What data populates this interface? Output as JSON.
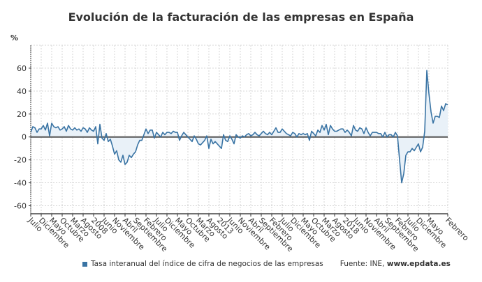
{
  "chart_data": {
    "type": "area",
    "title": "Evolución de la facturación de las empresas en España",
    "ylabel": "%",
    "xlabel": "",
    "ylim": [
      -67,
      80
    ],
    "yticks": [
      -60,
      -40,
      -20,
      0,
      20,
      40,
      60
    ],
    "grid": true,
    "legend_position": "bottom",
    "start_month": "2005-07",
    "frequency": "monthly",
    "xtick_labels": [
      "Julio",
      "Diciembre",
      "Mayo",
      "Octubre",
      "Marzo",
      "Agosto",
      "2008",
      "Junio",
      "Noviembre",
      "Abril",
      "Septiembre",
      "Febrero",
      "Julio",
      "Diciembre",
      "Mayo",
      "Octubre",
      "Marzo",
      "Agosto",
      "2013",
      "Junio",
      "Noviembre",
      "Abril",
      "Septiembre",
      "Febrero",
      "Julio",
      "Diciembre",
      "Mayo",
      "Octubre",
      "Marzo",
      "Agosto",
      "2018",
      "Junio",
      "Noviembre",
      "Abril",
      "Septiembre",
      "Febrero",
      "Julio",
      "Diciembre",
      "Mayo",
      "Febrero"
    ],
    "xtick_months": [
      0,
      5,
      10,
      15,
      20,
      25,
      30,
      35,
      40,
      45,
      50,
      55,
      60,
      65,
      70,
      75,
      80,
      85,
      90,
      95,
      100,
      105,
      110,
      115,
      120,
      125,
      130,
      135,
      140,
      145,
      150,
      155,
      160,
      165,
      170,
      175,
      180,
      185,
      190,
      199
    ],
    "series": [
      {
        "name": "Tasa interanual del índice de cifra de negocios de las empresas",
        "color": "#3a74a4",
        "fill_color": "#e9f1f8",
        "values": [
          4,
          9,
          8,
          4,
          7,
          7,
          10,
          6,
          12,
          1,
          12,
          9,
          8,
          9,
          6,
          7,
          9,
          5,
          10,
          7,
          6,
          8,
          6,
          7,
          5,
          8,
          7,
          4,
          8,
          6,
          5,
          9,
          -6,
          11,
          -1,
          -3,
          3,
          -4,
          -2,
          -8,
          -15,
          -12,
          -20,
          -22,
          -16,
          -24,
          -22,
          -16,
          -18,
          -15,
          -13,
          -7,
          -3,
          -3,
          2,
          7,
          3,
          6,
          6,
          -1,
          4,
          2,
          0,
          4,
          2,
          4,
          4,
          3,
          5,
          4,
          4,
          -3,
          1,
          4,
          2,
          0,
          -2,
          -4,
          1,
          -2,
          -6,
          -7,
          -5,
          -3,
          1,
          -10,
          -2,
          -6,
          -4,
          -6,
          -8,
          -10,
          2,
          -3,
          -4,
          1,
          -2,
          -6,
          2,
          0,
          -1,
          1,
          0,
          2,
          3,
          1,
          2,
          4,
          2,
          1,
          3,
          5,
          3,
          2,
          4,
          2,
          5,
          8,
          4,
          4,
          7,
          5,
          3,
          2,
          1,
          4,
          3,
          0,
          3,
          2,
          3,
          2,
          3,
          -3,
          5,
          3,
          1,
          6,
          4,
          10,
          6,
          11,
          2,
          10,
          7,
          5,
          5,
          6,
          7,
          7,
          4,
          6,
          4,
          1,
          10,
          6,
          5,
          8,
          7,
          3,
          8,
          4,
          1,
          4,
          4,
          4,
          3,
          3,
          0,
          4,
          0,
          2,
          2,
          0,
          4,
          1,
          -20,
          -40,
          -32,
          -16,
          -13,
          -13,
          -10,
          -12,
          -9,
          -6,
          -13,
          -9,
          5,
          58,
          38,
          22,
          12,
          18,
          18,
          17,
          27,
          23,
          29,
          28
        ]
      }
    ],
    "source_label": "Fuente: INE,",
    "source_site": "www.epdata.es"
  }
}
